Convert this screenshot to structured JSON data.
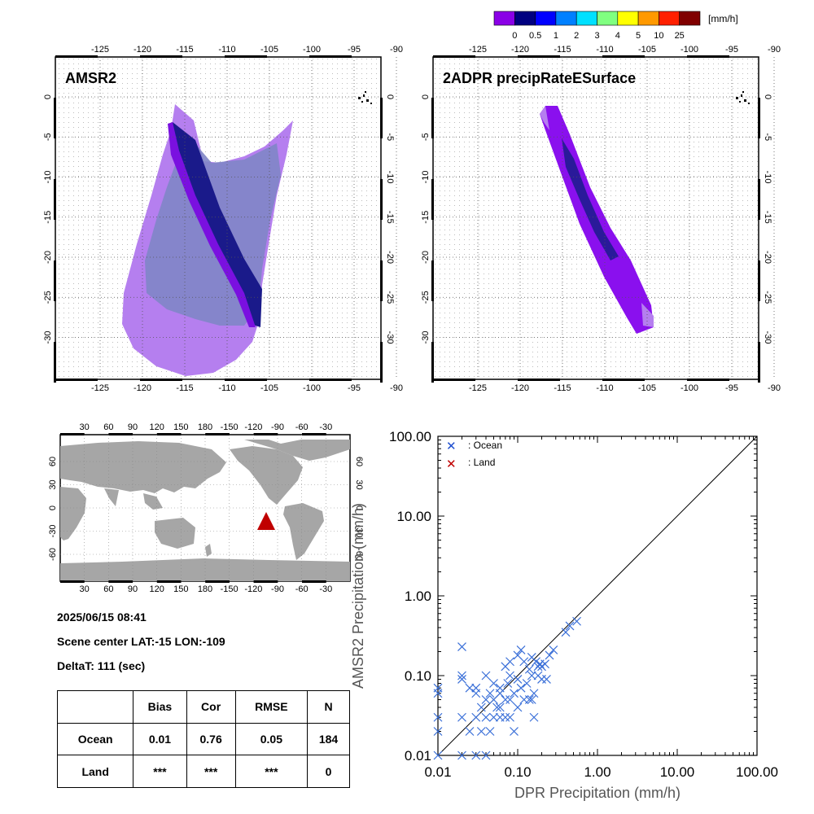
{
  "colorbar": {
    "unit": "[mm/h]",
    "colors": [
      "#8a00e6",
      "#000080",
      "#0000ff",
      "#0080ff",
      "#00e0ff",
      "#80ff80",
      "#ffff00",
      "#ff9900",
      "#ff2000",
      "#800000"
    ],
    "labels": [
      "0",
      "0.5",
      "1",
      "2",
      "3",
      "4",
      "5",
      "10",
      "25"
    ]
  },
  "panel_left": {
    "title": "AMSR2"
  },
  "panel_right": {
    "title": "2ADPR precipRateESurface"
  },
  "map_ticks": {
    "lon": [
      "-125",
      "-120",
      "-115",
      "-110",
      "-105",
      "-100",
      "-95",
      "-90"
    ],
    "lat": [
      "0",
      "-5",
      "-10",
      "-15",
      "-20",
      "-25",
      "-30"
    ]
  },
  "world_ticks": {
    "lon": [
      "30",
      "60",
      "90",
      "120",
      "150",
      "180",
      "-150",
      "-120",
      "-90",
      "-60",
      "-30"
    ],
    "lat": [
      "60",
      "30",
      "0",
      "-30",
      "-60"
    ]
  },
  "info": {
    "datetime": "2025/06/15 08:41",
    "scene_center": "Scene center LAT:-15   LON:-109",
    "deltat": "DeltaT:  111 (sec)"
  },
  "stats": {
    "headers": [
      "Bias",
      "Cor",
      "RMSE",
      "N"
    ],
    "rows": [
      {
        "label": "Ocean",
        "values": [
          "0.01",
          "0.76",
          "0.05",
          "184"
        ]
      },
      {
        "label": "Land",
        "values": [
          "***",
          "***",
          "***",
          "0"
        ]
      }
    ]
  },
  "chart_data": {
    "type": "scatter",
    "xlabel": "DPR Precipitation (mm/h)",
    "ylabel": "AMSR2 Precipitation (mm/h)",
    "xscale": "log",
    "yscale": "log",
    "xlim": [
      0.01,
      100
    ],
    "ylim": [
      0.01,
      100
    ],
    "ticklabels": [
      "0.01",
      "0.10",
      "1.00",
      "10.00",
      "100.00"
    ],
    "one_to_one_line": true,
    "legend": {
      "placement": "top-left",
      "entries": [
        {
          "name": ": Ocean",
          "color": "#1f4fcf"
        },
        {
          "name": ": Land",
          "color": "#c00000"
        }
      ]
    },
    "series": [
      {
        "name": ": Ocean",
        "color": "#3a6fd8",
        "points": [
          [
            0.01,
            0.01
          ],
          [
            0.01,
            0.02
          ],
          [
            0.01,
            0.03
          ],
          [
            0.01,
            0.06
          ],
          [
            0.01,
            0.07
          ],
          [
            0.02,
            0.23
          ],
          [
            0.02,
            0.1
          ],
          [
            0.02,
            0.09
          ],
          [
            0.02,
            0.03
          ],
          [
            0.02,
            0.01
          ],
          [
            0.025,
            0.07
          ],
          [
            0.025,
            0.02
          ],
          [
            0.03,
            0.07
          ],
          [
            0.03,
            0.06
          ],
          [
            0.03,
            0.03
          ],
          [
            0.03,
            0.01
          ],
          [
            0.035,
            0.02
          ],
          [
            0.035,
            0.04
          ],
          [
            0.04,
            0.1
          ],
          [
            0.04,
            0.05
          ],
          [
            0.04,
            0.03
          ],
          [
            0.04,
            0.01
          ],
          [
            0.045,
            0.06
          ],
          [
            0.045,
            0.02
          ],
          [
            0.05,
            0.08
          ],
          [
            0.05,
            0.05
          ],
          [
            0.05,
            0.03
          ],
          [
            0.055,
            0.04
          ],
          [
            0.06,
            0.07
          ],
          [
            0.06,
            0.06
          ],
          [
            0.06,
            0.04
          ],
          [
            0.06,
            0.03
          ],
          [
            0.07,
            0.13
          ],
          [
            0.07,
            0.05
          ],
          [
            0.07,
            0.03
          ],
          [
            0.075,
            0.08
          ],
          [
            0.08,
            0.15
          ],
          [
            0.08,
            0.1
          ],
          [
            0.08,
            0.05
          ],
          [
            0.08,
            0.03
          ],
          [
            0.09,
            0.06
          ],
          [
            0.09,
            0.02
          ],
          [
            0.1,
            0.18
          ],
          [
            0.1,
            0.09
          ],
          [
            0.1,
            0.04
          ],
          [
            0.11,
            0.21
          ],
          [
            0.11,
            0.07
          ],
          [
            0.12,
            0.15
          ],
          [
            0.12,
            0.05
          ],
          [
            0.13,
            0.08
          ],
          [
            0.14,
            0.12
          ],
          [
            0.14,
            0.05
          ],
          [
            0.15,
            0.17
          ],
          [
            0.15,
            0.1
          ],
          [
            0.15,
            0.05
          ],
          [
            0.16,
            0.06
          ],
          [
            0.16,
            0.03
          ],
          [
            0.17,
            0.15
          ],
          [
            0.18,
            0.13
          ],
          [
            0.18,
            0.1
          ],
          [
            0.19,
            0.14
          ],
          [
            0.2,
            0.13
          ],
          [
            0.2,
            0.09
          ],
          [
            0.22,
            0.14
          ],
          [
            0.23,
            0.09
          ],
          [
            0.25,
            0.18
          ],
          [
            0.28,
            0.21
          ],
          [
            0.4,
            0.35
          ],
          [
            0.45,
            0.42
          ],
          [
            0.55,
            0.48
          ]
        ]
      },
      {
        "name": ": Land",
        "color": "#c00000",
        "points": []
      }
    ]
  }
}
